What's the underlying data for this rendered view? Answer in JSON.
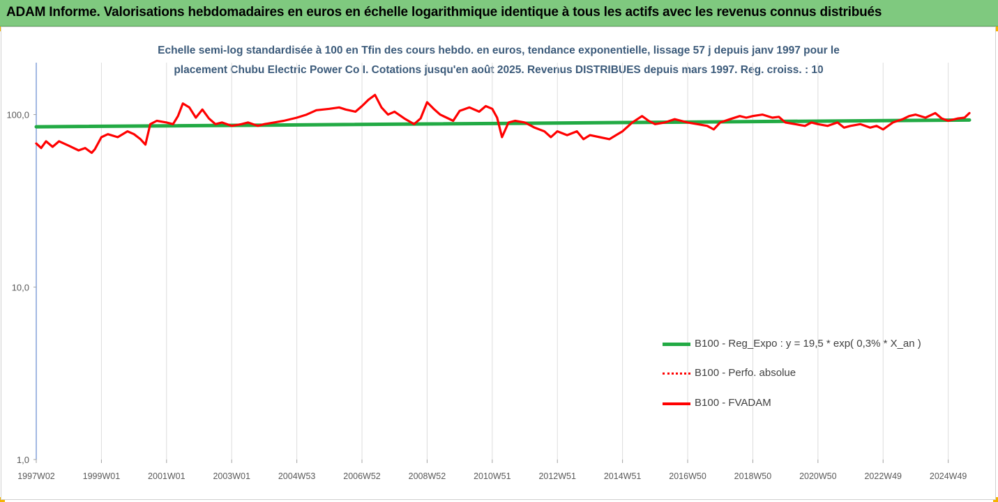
{
  "banner": {
    "title": "ADAM Informe. Valorisations hebdomadaires en euros en échelle logarithmique identique à tous les actifs avec les revenus connus distribués"
  },
  "chart_data": {
    "type": "line",
    "title_line1": "Echelle semi-log standardisée à 100 en Tfin des cours hebdo. en euros, tendance exponentielle, lissage 57 j depuis janv 1997 pour le",
    "title_line2": "placement Chubu Electric Power Co I. Cotations jusqu'en août 2025. Revenus DISTRIBUES depuis mars 1997. Reg. croiss. : 10",
    "y_scale": "log",
    "ylim": [
      1,
      200
    ],
    "y_ticks": [
      {
        "value": 1,
        "label": "1,0"
      },
      {
        "value": 10,
        "label": "10,0"
      },
      {
        "value": 100,
        "label": "100,0"
      }
    ],
    "xlim": [
      1997.0,
      2025.65
    ],
    "x_ticks": [
      {
        "value": 1997.0,
        "label": "1997W02"
      },
      {
        "value": 1999.0,
        "label": "1999W01"
      },
      {
        "value": 2001.0,
        "label": "2001W01"
      },
      {
        "value": 2003.0,
        "label": "2003W01"
      },
      {
        "value": 2005.0,
        "label": "2004W53"
      },
      {
        "value": 2007.0,
        "label": "2006W52"
      },
      {
        "value": 2009.0,
        "label": "2008W52"
      },
      {
        "value": 2011.0,
        "label": "2010W51"
      },
      {
        "value": 2013.0,
        "label": "2012W51"
      },
      {
        "value": 2015.0,
        "label": "2014W51"
      },
      {
        "value": 2017.0,
        "label": "2016W50"
      },
      {
        "value": 2019.0,
        "label": "2018W50"
      },
      {
        "value": 2021.0,
        "label": "2020W50"
      },
      {
        "value": 2023.0,
        "label": "2022W49"
      },
      {
        "value": 2025.0,
        "label": "2024W49"
      }
    ],
    "grid": "vertical",
    "legend_position": "bottom-right",
    "series": [
      {
        "name": "B100 - Reg_Expo : y = 19,5 * exp( 0,3% * X_an )",
        "color": "#22aa44",
        "style": "solid",
        "x": [
          1997.0,
          2025.65
        ],
        "values": [
          85,
          93
        ]
      },
      {
        "name": "B100 - Perfo. absolue",
        "color": "#ff0000",
        "style": "dotted",
        "x": [],
        "values": []
      },
      {
        "name": "B100 - FVADAM",
        "color": "#ff0000",
        "style": "solid",
        "x": [
          1997.0,
          1997.15,
          1997.3,
          1997.5,
          1997.7,
          1998.0,
          1998.3,
          1998.5,
          1998.7,
          1998.8,
          1999.0,
          1999.2,
          1999.5,
          1999.8,
          2000.0,
          2000.2,
          2000.35,
          2000.5,
          2000.7,
          2001.0,
          2001.2,
          2001.35,
          2001.5,
          2001.7,
          2001.9,
          2002.1,
          2002.3,
          2002.5,
          2002.7,
          2003.0,
          2003.3,
          2003.5,
          2003.8,
          2004.0,
          2004.3,
          2004.6,
          2005.0,
          2005.3,
          2005.6,
          2006.0,
          2006.3,
          2006.5,
          2006.8,
          2007.0,
          2007.2,
          2007.4,
          2007.6,
          2007.8,
          2008.0,
          2008.3,
          2008.6,
          2008.8,
          2009.0,
          2009.2,
          2009.4,
          2009.6,
          2009.8,
          2010.0,
          2010.3,
          2010.6,
          2010.8,
          2011.0,
          2011.15,
          2011.3,
          2011.5,
          2011.7,
          2012.0,
          2012.3,
          2012.6,
          2012.8,
          2013.0,
          2013.3,
          2013.6,
          2013.8,
          2014.0,
          2014.3,
          2014.6,
          2014.8,
          2015.0,
          2015.3,
          2015.6,
          2015.8,
          2016.0,
          2016.3,
          2016.6,
          2016.8,
          2017.0,
          2017.3,
          2017.6,
          2017.8,
          2018.0,
          2018.3,
          2018.6,
          2018.8,
          2019.0,
          2019.3,
          2019.6,
          2019.8,
          2020.0,
          2020.3,
          2020.6,
          2020.8,
          2021.0,
          2021.3,
          2021.6,
          2021.8,
          2022.0,
          2022.3,
          2022.6,
          2022.8,
          2023.0,
          2023.3,
          2023.6,
          2023.8,
          2024.0,
          2024.3,
          2024.6,
          2024.8,
          2025.0,
          2025.3,
          2025.5,
          2025.65
        ],
        "values": [
          68,
          64,
          70,
          65,
          70,
          66,
          62,
          64,
          60,
          63,
          74,
          77,
          74,
          80,
          77,
          72,
          67,
          88,
          92,
          90,
          88,
          98,
          116,
          110,
          96,
          107,
          95,
          88,
          90,
          86,
          88,
          90,
          86,
          88,
          90,
          92,
          96,
          100,
          106,
          108,
          110,
          107,
          104,
          112,
          122,
          130,
          110,
          100,
          104,
          95,
          88,
          95,
          118,
          108,
          100,
          96,
          92,
          105,
          110,
          104,
          112,
          108,
          96,
          74,
          90,
          92,
          90,
          84,
          80,
          74,
          80,
          76,
          80,
          72,
          76,
          74,
          72,
          76,
          80,
          90,
          98,
          92,
          88,
          90,
          94,
          92,
          90,
          88,
          86,
          82,
          90,
          94,
          98,
          96,
          98,
          100,
          96,
          97,
          90,
          88,
          86,
          90,
          88,
          86,
          90,
          84,
          86,
          88,
          84,
          86,
          82,
          90,
          94,
          98,
          100,
          96,
          102,
          95,
          92,
          95,
          96,
          102
        ]
      }
    ]
  }
}
